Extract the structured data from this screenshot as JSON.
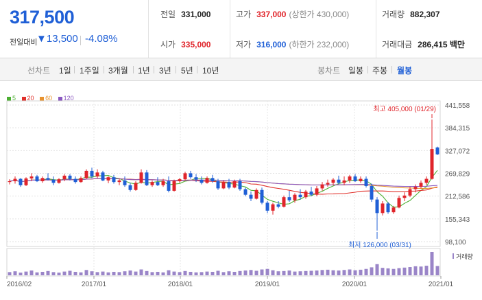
{
  "quote": {
    "price": "317,500",
    "change_label": "전일대비",
    "change_value": "▼13,500",
    "change_pct": "-4.08%"
  },
  "stats": {
    "prev_close_label": "전일",
    "prev_close": "331,000",
    "high_label": "고가",
    "high": "337,000",
    "upper_limit": "(상한가 430,000)",
    "volume_label": "거래량",
    "volume": "882,307",
    "open_label": "시가",
    "open": "335,000",
    "low_label": "저가",
    "low": "316,000",
    "lower_limit": "(하한가 232,000)",
    "amount_label": "거래대금",
    "amount": "286,415 백만"
  },
  "toolbar": {
    "line_title": "선차트",
    "line_periods": [
      "1일",
      "1주일",
      "3개월",
      "1년",
      "3년",
      "5년",
      "10년"
    ],
    "candle_title": "봉차트",
    "candle_periods": [
      "일봉",
      "주봉",
      "월봉"
    ],
    "active_candle": "월봉"
  },
  "legend": [
    {
      "label": "5",
      "color": "#4caf32"
    },
    {
      "label": "20",
      "color": "#e0302a"
    },
    {
      "label": "60",
      "color": "#e8922e"
    },
    {
      "label": "120",
      "color": "#8a58c0"
    }
  ],
  "colors": {
    "up": "#e0242a",
    "down": "#1f5fd6",
    "volume": "#9a85c8"
  },
  "chart_data": {
    "type": "candlestick",
    "y_ticks": [
      "441,558",
      "384,315",
      "327,072",
      "269,829",
      "212,586",
      "155,343",
      "98,100"
    ],
    "ylim": [
      98100,
      441558
    ],
    "x_ticks": [
      "2016/02",
      "2017/01",
      "2018/01",
      "2019/01",
      "2020/01",
      "2021/01"
    ],
    "high_annotation": "최고 405,000 (01/29)",
    "low_annotation": "최저 126,000 (03/31)",
    "volume_label": "거래량",
    "candles": [
      [
        248000,
        255000,
        242000,
        250000
      ],
      [
        250000,
        262000,
        244000,
        256000
      ],
      [
        256000,
        258000,
        236000,
        240000
      ],
      [
        240000,
        260000,
        238000,
        257000
      ],
      [
        257000,
        270000,
        250000,
        262000
      ],
      [
        262000,
        266000,
        248000,
        250000
      ],
      [
        250000,
        262000,
        246000,
        258000
      ],
      [
        258000,
        270000,
        252000,
        254000
      ],
      [
        254000,
        262000,
        240000,
        246000
      ],
      [
        246000,
        258000,
        244000,
        255000
      ],
      [
        255000,
        268000,
        250000,
        264000
      ],
      [
        264000,
        268000,
        252000,
        256000
      ],
      [
        256000,
        262000,
        244000,
        248000
      ],
      [
        248000,
        262000,
        246000,
        258000
      ],
      [
        258000,
        280000,
        255000,
        276000
      ],
      [
        276000,
        284000,
        258000,
        262000
      ],
      [
        262000,
        280000,
        258000,
        272000
      ],
      [
        272000,
        276000,
        250000,
        252000
      ],
      [
        252000,
        262000,
        245000,
        260000
      ],
      [
        260000,
        266000,
        244000,
        248000
      ],
      [
        248000,
        256000,
        240000,
        252000
      ],
      [
        252000,
        262000,
        236000,
        240000
      ],
      [
        240000,
        246000,
        224000,
        228000
      ],
      [
        228000,
        250000,
        226000,
        246000
      ],
      [
        246000,
        280000,
        244000,
        272000
      ],
      [
        272000,
        278000,
        238000,
        240000
      ],
      [
        240000,
        252000,
        236000,
        248000
      ],
      [
        248000,
        260000,
        238000,
        240000
      ],
      [
        240000,
        256000,
        236000,
        250000
      ],
      [
        250000,
        262000,
        222000,
        226000
      ],
      [
        226000,
        254000,
        224000,
        250000
      ],
      [
        250000,
        258000,
        246000,
        255000
      ],
      [
        255000,
        274000,
        252000,
        270000
      ],
      [
        270000,
        276000,
        256000,
        260000
      ],
      [
        260000,
        268000,
        248000,
        254000
      ],
      [
        254000,
        262000,
        242000,
        246000
      ],
      [
        246000,
        262000,
        244000,
        258000
      ],
      [
        258000,
        266000,
        246000,
        250000
      ],
      [
        250000,
        256000,
        228000,
        232000
      ],
      [
        232000,
        252000,
        230000,
        248000
      ],
      [
        248000,
        256000,
        230000,
        234000
      ],
      [
        234000,
        254000,
        232000,
        250000
      ],
      [
        250000,
        256000,
        226000,
        230000
      ],
      [
        230000,
        234000,
        212000,
        216000
      ],
      [
        216000,
        224000,
        200000,
        206000
      ],
      [
        206000,
        232000,
        204000,
        228000
      ],
      [
        228000,
        234000,
        192000,
        196000
      ],
      [
        196000,
        200000,
        170000,
        176000
      ],
      [
        176000,
        196000,
        166000,
        192000
      ],
      [
        192000,
        200000,
        182000,
        186000
      ],
      [
        186000,
        214000,
        184000,
        210000
      ],
      [
        210000,
        226000,
        198000,
        202000
      ],
      [
        202000,
        220000,
        196000,
        216000
      ],
      [
        216000,
        230000,
        204000,
        210000
      ],
      [
        210000,
        228000,
        206000,
        224000
      ],
      [
        224000,
        236000,
        212000,
        216000
      ],
      [
        216000,
        238000,
        212000,
        232000
      ],
      [
        232000,
        248000,
        226000,
        242000
      ],
      [
        242000,
        254000,
        236000,
        246000
      ],
      [
        246000,
        258000,
        240000,
        254000
      ],
      [
        254000,
        264000,
        242000,
        246000
      ],
      [
        246000,
        262000,
        240000,
        252000
      ],
      [
        252000,
        266000,
        246000,
        262000
      ],
      [
        262000,
        268000,
        248000,
        250000
      ],
      [
        250000,
        262000,
        246000,
        256000
      ],
      [
        256000,
        262000,
        234000,
        238000
      ],
      [
        238000,
        244000,
        198000,
        204000
      ],
      [
        204000,
        210000,
        126000,
        170000
      ],
      [
        170000,
        200000,
        164000,
        194000
      ],
      [
        194000,
        198000,
        168000,
        172000
      ],
      [
        172000,
        188000,
        168000,
        184000
      ],
      [
        184000,
        214000,
        182000,
        208000
      ],
      [
        208000,
        222000,
        200000,
        214000
      ],
      [
        214000,
        236000,
        210000,
        230000
      ],
      [
        230000,
        242000,
        222000,
        236000
      ],
      [
        236000,
        252000,
        232000,
        246000
      ],
      [
        246000,
        262000,
        240000,
        256000
      ],
      [
        256000,
        405000,
        254000,
        331000
      ],
      [
        335000,
        337000,
        316000,
        317500
      ]
    ],
    "volume": [
      12,
      15,
      10,
      14,
      18,
      11,
      13,
      16,
      12,
      10,
      14,
      17,
      13,
      11,
      20,
      15,
      12,
      14,
      11,
      13,
      12,
      15,
      18,
      14,
      22,
      16,
      12,
      13,
      11,
      19,
      14,
      12,
      16,
      13,
      11,
      12,
      14,
      13,
      17,
      12,
      15,
      13,
      16,
      18,
      20,
      17,
      22,
      24,
      19,
      15,
      16,
      18,
      14,
      15,
      16,
      17,
      18,
      20,
      21,
      19,
      18,
      20,
      22,
      19,
      21,
      24,
      30,
      42,
      28,
      26,
      24,
      27,
      29,
      31,
      34,
      33,
      36,
      88,
      35
    ]
  }
}
